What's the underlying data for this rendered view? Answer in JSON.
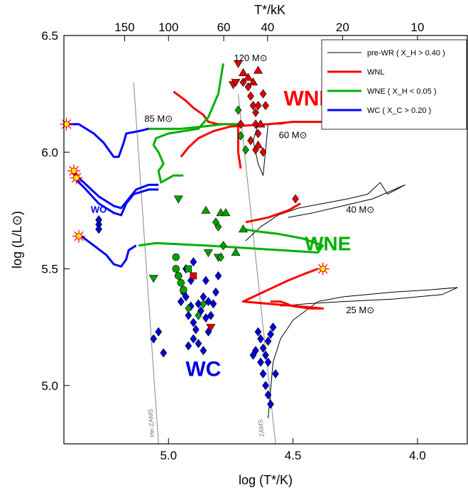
{
  "chart_data": {
    "type": "scatter",
    "title": "",
    "xlabel": "log (T*/K)",
    "ylabel": "log (L/L⊙)",
    "top_axis_label": "T*/kK",
    "xlim": [
      5.42,
      3.8
    ],
    "ylim": [
      4.75,
      6.5
    ],
    "x_ticks": [
      5.0,
      4.5,
      4.0
    ],
    "x_tick_labels": [
      "5.0",
      "4.5",
      "4.0"
    ],
    "y_ticks": [
      5.0,
      5.5,
      6.0,
      6.5
    ],
    "y_tick_labels": [
      "5.0",
      "5.5",
      "6.0",
      "6.5"
    ],
    "top_ticks": [
      150,
      100,
      60,
      40,
      20,
      10
    ],
    "top_tick_labels": [
      "150",
      "100",
      "60",
      "40",
      "20",
      "10"
    ],
    "legend": {
      "position": "top-right",
      "entries": [
        {
          "label": "pre-WR ( X_H > 0.40 )",
          "color": "#000000"
        },
        {
          "label": "WNL",
          "color": "#ff0000"
        },
        {
          "label": "WNE ( X_H < 0.05 )",
          "color": "#00b000"
        },
        {
          "label": "WC ( X_C > 0.20 )",
          "color": "#0000ff"
        }
      ]
    },
    "region_labels": [
      {
        "text": "WNL",
        "color": "#ff0000",
        "x": 4.44,
        "y": 6.2
      },
      {
        "text": "WNE",
        "color": "#00b000",
        "x": 4.36,
        "y": 5.58
      },
      {
        "text": "WC",
        "color": "#0000dd",
        "x": 4.86,
        "y": 5.04
      },
      {
        "text": "WO",
        "color": "#0000ff",
        "x": 5.28,
        "y": 5.74
      }
    ],
    "mass_labels": [
      {
        "text": "120 M⊙",
        "x": 4.67,
        "y": 6.39
      },
      {
        "text": "85 M⊙",
        "x": 5.04,
        "y": 6.13
      },
      {
        "text": "60 M⊙",
        "x": 4.5,
        "y": 6.06
      },
      {
        "text": "40 M⊙",
        "x": 4.23,
        "y": 5.74
      },
      {
        "text": "25 M⊙",
        "x": 4.23,
        "y": 5.31
      }
    ],
    "reference_lines": [
      {
        "name": "He-ZAMS",
        "points": [
          [
            5.14,
            6.3
          ],
          [
            5.04,
            4.75
          ]
        ]
      },
      {
        "name": "ZAMS",
        "points": [
          [
            4.72,
            6.25
          ],
          [
            4.57,
            4.75
          ]
        ]
      }
    ],
    "series": [
      {
        "name": "pre-WR",
        "color": "#000000",
        "width": 1,
        "points": [
          [
            4.64,
            6.12
          ],
          [
            4.66,
            6.05
          ],
          [
            4.65,
            6.0
          ],
          [
            4.64,
            5.95
          ],
          [
            4.62,
            5.9
          ],
          [
            4.6,
            6.12
          ],
          [
            4.55,
            6.12
          ],
          [
            4.5,
            6.13
          ],
          [
            4.4,
            6.13
          ],
          [
            4.3,
            6.14
          ],
          [
            4.15,
            6.14
          ]
        ]
      },
      {
        "name": "pre-WR-40",
        "color": "#000000",
        "width": 1,
        "points": [
          [
            4.69,
            5.62
          ],
          [
            4.63,
            5.68
          ],
          [
            4.56,
            5.73
          ],
          [
            4.48,
            5.76
          ],
          [
            4.38,
            5.78
          ],
          [
            4.28,
            5.8
          ],
          [
            4.2,
            5.82
          ],
          [
            4.15,
            5.87
          ],
          [
            4.12,
            5.82
          ],
          [
            4.05,
            5.86
          ],
          [
            4.18,
            5.8
          ],
          [
            4.3,
            5.77
          ],
          [
            4.42,
            5.74
          ],
          [
            4.52,
            5.72
          ]
        ]
      },
      {
        "name": "pre-WR-25",
        "color": "#000000",
        "width": 1,
        "points": [
          [
            4.6,
            4.86
          ],
          [
            4.58,
            5.1
          ],
          [
            4.55,
            5.2
          ],
          [
            4.5,
            5.28
          ],
          [
            4.4,
            5.36
          ],
          [
            4.3,
            5.38
          ],
          [
            4.1,
            5.4
          ],
          [
            3.95,
            5.41
          ],
          [
            3.84,
            5.42
          ],
          [
            3.9,
            5.39
          ],
          [
            4.1,
            5.37
          ],
          [
            4.3,
            5.36
          ],
          [
            4.45,
            5.35
          ],
          [
            4.55,
            5.34
          ]
        ]
      },
      {
        "name": "WNL-120",
        "color": "#ff0000",
        "width": 3,
        "points": [
          [
            4.98,
            6.26
          ],
          [
            4.93,
            6.22
          ],
          [
            4.9,
            6.19
          ],
          [
            4.86,
            6.16
          ],
          [
            4.84,
            6.13
          ],
          [
            4.8,
            6.12
          ],
          [
            4.75,
            6.12
          ],
          [
            4.72,
            6.12
          ],
          [
            4.72,
            6.07
          ],
          [
            4.72,
            6.0
          ],
          [
            4.71,
            5.93
          ]
        ]
      },
      {
        "name": "WNL-85",
        "color": "#ff0000",
        "width": 3,
        "points": [
          [
            4.95,
            5.98
          ],
          [
            4.92,
            6.02
          ],
          [
            4.88,
            6.06
          ],
          [
            4.82,
            6.09
          ],
          [
            4.75,
            6.11
          ],
          [
            4.6,
            6.12
          ],
          [
            4.5,
            6.13
          ],
          [
            4.35,
            6.13
          ],
          [
            4.2,
            6.14
          ],
          [
            4.1,
            6.14
          ]
        ]
      },
      {
        "name": "WNL-40",
        "color": "#ff0000",
        "width": 3,
        "points": [
          [
            4.69,
            5.7
          ],
          [
            4.6,
            5.72
          ],
          [
            4.52,
            5.75
          ],
          [
            4.47,
            5.78
          ]
        ]
      },
      {
        "name": "WNL-25",
        "color": "#ff0000",
        "width": 3,
        "points": [
          [
            4.59,
            5.36
          ],
          [
            4.55,
            5.36
          ],
          [
            4.5,
            5.34
          ],
          [
            4.43,
            5.33
          ],
          [
            4.38,
            5.33
          ],
          [
            4.7,
            5.36
          ],
          [
            4.62,
            5.4
          ],
          [
            4.52,
            5.45
          ],
          [
            4.45,
            5.48
          ],
          [
            4.4,
            5.5
          ]
        ]
      },
      {
        "name": "WNE-120",
        "color": "#00b000",
        "width": 3,
        "points": [
          [
            4.78,
            6.38
          ],
          [
            4.8,
            6.25
          ],
          [
            4.84,
            6.15
          ],
          [
            4.88,
            6.1
          ],
          [
            4.94,
            6.09
          ],
          [
            5.0,
            6.08
          ],
          [
            5.05,
            6.06
          ],
          [
            5.06,
            6.03
          ],
          [
            5.04,
            6.0
          ],
          [
            5.02,
            5.95
          ],
          [
            5.04,
            5.92
          ],
          [
            5.03,
            5.87
          ],
          [
            4.98,
            5.9
          ],
          [
            4.94,
            5.9
          ]
        ]
      },
      {
        "name": "WNE-85",
        "color": "#00b000",
        "width": 3,
        "points": [
          [
            4.72,
            6.12
          ],
          [
            4.78,
            6.12
          ],
          [
            4.86,
            6.11
          ],
          [
            4.95,
            6.1
          ],
          [
            5.05,
            6.1
          ],
          [
            5.09,
            6.1
          ]
        ]
      },
      {
        "name": "WNE-40",
        "color": "#00b000",
        "width": 3,
        "points": [
          [
            4.7,
            5.67
          ],
          [
            4.64,
            5.66
          ],
          [
            4.56,
            5.65
          ],
          [
            4.46,
            5.63
          ],
          [
            4.38,
            5.6
          ],
          [
            4.4,
            5.57
          ],
          [
            4.55,
            5.58
          ],
          [
            4.7,
            5.59
          ],
          [
            4.85,
            5.6
          ],
          [
            5.05,
            5.61
          ],
          [
            5.12,
            5.6
          ]
        ]
      },
      {
        "name": "WC-85",
        "color": "#0000ff",
        "width": 3,
        "points": [
          [
            5.41,
            6.12
          ],
          [
            5.36,
            6.12
          ],
          [
            5.3,
            6.08
          ],
          [
            5.26,
            6.04
          ],
          [
            5.22,
            5.98
          ],
          [
            5.2,
            5.98
          ],
          [
            5.18,
            6.04
          ],
          [
            5.17,
            6.08
          ],
          [
            5.12,
            6.09
          ],
          [
            5.08,
            6.1
          ]
        ]
      },
      {
        "name": "WC-60a",
        "color": "#0000ff",
        "width": 3,
        "points": [
          [
            5.38,
            5.91
          ],
          [
            5.34,
            5.87
          ],
          [
            5.28,
            5.81
          ],
          [
            5.22,
            5.77
          ],
          [
            5.19,
            5.76
          ],
          [
            5.16,
            5.8
          ],
          [
            5.13,
            5.84
          ],
          [
            5.08,
            5.86
          ],
          [
            5.04,
            5.86
          ]
        ]
      },
      {
        "name": "WC-60b",
        "color": "#0000ff",
        "width": 3,
        "points": [
          [
            5.38,
            5.89
          ],
          [
            5.34,
            5.85
          ],
          [
            5.28,
            5.78
          ],
          [
            5.22,
            5.74
          ],
          [
            5.19,
            5.73
          ],
          [
            5.17,
            5.78
          ],
          [
            5.14,
            5.82
          ],
          [
            5.08,
            5.84
          ],
          [
            5.04,
            5.84
          ]
        ]
      },
      {
        "name": "WC-40",
        "color": "#0000ff",
        "width": 3,
        "points": [
          [
            5.35,
            5.64
          ],
          [
            5.3,
            5.6
          ],
          [
            5.25,
            5.56
          ],
          [
            5.22,
            5.52
          ],
          [
            5.19,
            5.51
          ],
          [
            5.17,
            5.54
          ],
          [
            5.16,
            5.58
          ],
          [
            5.13,
            5.6
          ]
        ]
      }
    ],
    "endpoints": [
      {
        "x": 5.41,
        "y": 6.12
      },
      {
        "x": 5.38,
        "y": 5.92
      },
      {
        "x": 5.37,
        "y": 5.89
      },
      {
        "x": 5.36,
        "y": 5.64
      },
      {
        "x": 4.38,
        "y": 5.5
      }
    ],
    "stars": [
      {
        "type": "diamond",
        "color": "#0000dd",
        "points": [
          [
            5.28,
            5.69
          ],
          [
            5.28,
            5.71
          ],
          [
            5.28,
            5.67
          ],
          [
            5.06,
            5.2
          ],
          [
            5.04,
            5.23
          ],
          [
            5.02,
            5.14
          ],
          [
            4.95,
            5.36
          ],
          [
            4.93,
            5.38
          ],
          [
            4.92,
            5.3
          ],
          [
            4.91,
            5.34
          ],
          [
            4.9,
            5.27
          ],
          [
            4.89,
            5.24
          ],
          [
            4.88,
            5.35
          ],
          [
            4.87,
            5.32
          ],
          [
            4.86,
            5.38
          ],
          [
            4.85,
            5.29
          ],
          [
            4.84,
            5.23
          ],
          [
            4.83,
            5.3
          ],
          [
            4.82,
            5.35
          ],
          [
            4.81,
            5.4
          ],
          [
            4.8,
            5.47
          ],
          [
            4.9,
            5.53
          ],
          [
            4.88,
            5.18
          ],
          [
            4.86,
            5.15
          ],
          [
            4.91,
            5.45
          ],
          [
            4.93,
            5.5
          ],
          [
            4.94,
            5.4
          ],
          [
            4.85,
            5.45
          ],
          [
            4.84,
            5.36
          ],
          [
            4.9,
            5.2
          ],
          [
            4.92,
            5.17
          ],
          [
            4.64,
            5.23
          ],
          [
            4.63,
            5.2
          ],
          [
            4.62,
            5.16
          ],
          [
            4.61,
            5.13
          ],
          [
            4.6,
            5.19
          ],
          [
            4.59,
            5.22
          ],
          [
            4.63,
            5.1
          ],
          [
            4.62,
            5.05
          ],
          [
            4.61,
            5.0
          ],
          [
            4.6,
            4.96
          ],
          [
            4.59,
            4.92
          ],
          [
            4.65,
            5.15
          ],
          [
            4.66,
            5.13
          ],
          [
            4.58,
            5.25
          ],
          [
            4.6,
            5.1
          ],
          [
            4.57,
            5.05
          ]
        ]
      },
      {
        "type": "circle",
        "color": "#00a000",
        "points": [
          [
            4.97,
            5.5
          ],
          [
            4.96,
            5.47
          ],
          [
            4.95,
            5.44
          ],
          [
            4.94,
            5.41
          ],
          [
            4.97,
            5.55
          ]
        ]
      },
      {
        "type": "triangle-down",
        "color": "#00a000",
        "points": [
          [
            5.06,
            5.46
          ],
          [
            4.96,
            5.8
          ],
          [
            4.84,
            5.57
          ],
          [
            4.8,
            5.55
          ]
        ]
      },
      {
        "type": "triangle-up",
        "color": "#00a000",
        "points": [
          [
            4.79,
            5.74
          ],
          [
            4.77,
            5.74
          ],
          [
            4.73,
            5.57
          ],
          [
            4.7,
            5.67
          ],
          [
            4.85,
            5.75
          ]
        ]
      },
      {
        "type": "diamond",
        "color": "#00a000",
        "points": [
          [
            4.81,
            5.7
          ],
          [
            4.8,
            5.68
          ],
          [
            4.79,
            5.55
          ],
          [
            4.78,
            5.6
          ],
          [
            4.92,
            5.33
          ],
          [
            4.88,
            5.3
          ],
          [
            4.86,
            5.35
          ],
          [
            4.72,
            6.18
          ],
          [
            4.71,
            6.07
          ],
          [
            4.69,
            6.01
          ]
        ]
      },
      {
        "type": "square",
        "color": "#00a000",
        "points": [
          [
            4.92,
            5.5
          ]
        ]
      },
      {
        "type": "diamond",
        "color": "#dd0000",
        "points": [
          [
            4.7,
            6.3
          ],
          [
            4.68,
            6.28
          ],
          [
            4.67,
            6.24
          ],
          [
            4.66,
            6.2
          ],
          [
            4.65,
            6.17
          ],
          [
            4.65,
            6.12
          ],
          [
            4.64,
            6.08
          ],
          [
            4.67,
            6.05
          ],
          [
            4.65,
            6.01
          ],
          [
            4.62,
            6.0
          ],
          [
            4.62,
            6.25
          ],
          [
            4.61,
            6.2
          ],
          [
            4.64,
            6.2
          ],
          [
            4.71,
            6.12
          ],
          [
            4.49,
            5.8
          ]
        ]
      },
      {
        "type": "triangle-up",
        "color": "#dd0000",
        "points": [
          [
            4.7,
            6.34
          ],
          [
            4.68,
            6.32
          ],
          [
            4.66,
            6.3
          ],
          [
            4.64,
            6.35
          ],
          [
            4.63,
            6.12
          ],
          [
            4.64,
            6.03
          ]
        ]
      },
      {
        "type": "triangle-down",
        "color": "#dd0000",
        "points": [
          [
            4.72,
            6.38
          ],
          [
            4.74,
            6.29
          ],
          [
            4.73,
            6.3
          ],
          [
            4.83,
            5.25
          ]
        ]
      },
      {
        "type": "square",
        "color": "#dd0000",
        "points": [
          [
            4.9,
            5.47
          ]
        ]
      }
    ]
  }
}
